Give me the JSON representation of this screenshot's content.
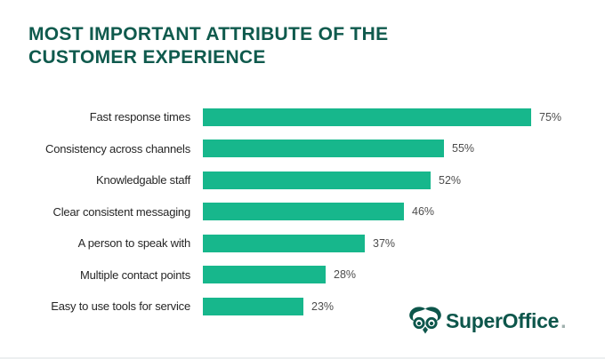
{
  "title": {
    "line1": "MOST IMPORTANT ATTRIBUTE OF THE",
    "line2": "CUSTOMER EXPERIENCE"
  },
  "chart_data": {
    "type": "bar",
    "orientation": "horizontal",
    "title": "MOST IMPORTANT ATTRIBUTE OF THE CUSTOMER EXPERIENCE",
    "categories": [
      "Fast response times",
      "Consistency across channels",
      "Knowledgable staff",
      "Clear consistent messaging",
      "A person to speak with",
      "Multiple contact points",
      "Easy to use tools for service"
    ],
    "values": [
      75,
      55,
      52,
      46,
      37,
      28,
      23
    ],
    "value_labels": [
      "75%",
      "55%",
      "52%",
      "46%",
      "37%",
      "28%",
      "23%"
    ],
    "unit": "%",
    "xlim": [
      0,
      75
    ],
    "grid": false,
    "legend": false,
    "bar_color": "#17B78C",
    "value_label_position": "right-of-bar"
  },
  "branding": {
    "logo_text": "SuperOffice",
    "logo_suffix": ".",
    "owl_icon": "owl-icon"
  },
  "colors": {
    "background": "#FFFFFF",
    "title": "#0F5A4D",
    "bar": "#17B78C",
    "label": "#262626",
    "value": "#4D4D4D",
    "logo": "#0D564B"
  }
}
